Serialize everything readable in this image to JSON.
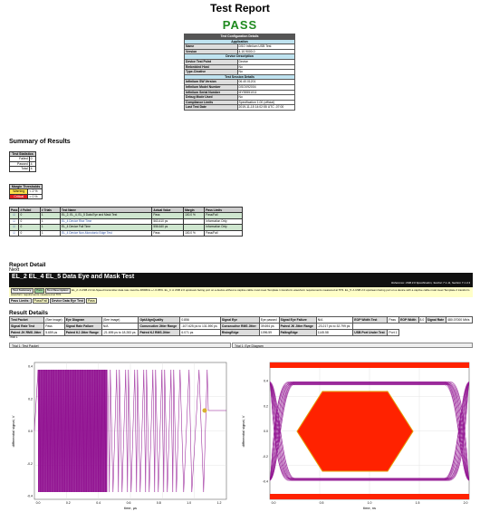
{
  "report": {
    "title": "Test Report",
    "status": "PASS"
  },
  "config": {
    "header": "Test Configuration Details",
    "sections": [
      {
        "title": "Application",
        "rows": [
          [
            "Name",
            "DSO Infiniium USB Test"
          ],
          [
            "Version",
            "4.10.9000.0"
          ]
        ]
      },
      {
        "title": "Device Description",
        "rows": [
          [
            "Device Test Point",
            "Device"
          ],
          [
            "Embedded Host",
            "No"
          ],
          [
            "Type-C/native",
            "No"
          ]
        ]
      },
      {
        "title": "Test Session Details",
        "rows": [
          [
            "Infiniium SW Version",
            "06.40.01201"
          ],
          [
            "Infiniium Model Number",
            "DSOX92004"
          ],
          [
            "Infiniium Serial Number",
            "MY55551011"
          ],
          [
            "Debug Mode Used",
            "No"
          ],
          [
            "Compliance Limits",
            "Specification 1.00 (official)"
          ],
          [
            "Last Test Date",
            "2019-11-15 14:02:55 UTC -07:00"
          ]
        ]
      }
    ]
  },
  "summary": {
    "heading": "Summary of Results",
    "stats_header": "Test Statistics",
    "stats": [
      [
        "Failed",
        "0"
      ],
      [
        "Passed",
        "4"
      ],
      [
        "Total",
        "4"
      ]
    ],
    "margin_header": "Margin Thresholds",
    "margins": [
      [
        "Warning",
        "< 2 %"
      ],
      [
        "Critical",
        "< 0 %"
      ]
    ],
    "result_columns": [
      "Pass",
      "# Failed",
      "# Trials",
      "Test Name",
      "Actual Value",
      "Margin",
      "Pass Limits"
    ],
    "results": [
      [
        "",
        "0",
        "1",
        "EL_2, EL_4, EL_5 Data Eye and Mask Test",
        "Pass",
        "100.0 %",
        "Pass/Fail"
      ],
      [
        "",
        "0",
        "1",
        "EL_4 Device Rise Time",
        "563.410 ps",
        "",
        "Information Only"
      ],
      [
        "",
        "0",
        "1",
        "EL_4 Device Fall Time",
        "556.640 ps",
        "",
        "Information Only"
      ],
      [
        "",
        "0",
        "1",
        "EL_4 Device Non-Monotonic Edge Test",
        "Pass",
        "100.0 %",
        "Pass/Fail"
      ]
    ]
  },
  "detail": {
    "heading": "Report Detail",
    "next": "Next",
    "test_title": "EL_2 EL_4 EL_5 Data Eye and Mask Test",
    "reference": "Reference: USB 3.0 Specification, Section 7.1.11, Section 7.1.3.3",
    "summary_label": "Test Summary:",
    "summary_value": "Pass",
    "description_label": "Test Description:",
    "description": "EL_2: A USB 2.0 Hi-Speed transmitter data rate must be 480Mb/s +/- 0.05%. EL_4: A USB 2.0 upstream facing port on a device without a captive cable must meet Template 1 transform waveform requirements measured at TP3. EL_5: A USB 2.0 upstream facing port on a device with a captive cable must meet Template 2 transform waveform requirements measured at TP2.",
    "limits_label": "Pass Limits:",
    "limits_value": "Pass/Fail",
    "eye_type_label": "Device Data Eye Test",
    "eye_type_value": "Pass",
    "result_details": "Result Details",
    "measurements": [
      [
        "Test Packet",
        "(See image)",
        "Eye Diagram",
        "(See image)",
        "OptAlignQuality",
        "0.856",
        "Signal Eye",
        "Eye passed",
        "Signal Eye Failure",
        "N/A",
        "EOP Width Test",
        "Pass",
        "EOP Width",
        "8.0",
        "Signal Rate",
        "480.07000 Mb/s"
      ],
      [
        "Signal Rate Test",
        "Pass",
        "Signal Rate Failure",
        "N/A",
        "Consecutive Jitter Range",
        "-107.625 ps to 131.590 ps",
        "Consecutive RMS Jitter",
        "39.694 ps",
        "Paired JK Jitter Range",
        "-23.217 ps to 32.799 ps"
      ],
      [
        "Paired JK RMS Jitter",
        "5.659 ps",
        "Paired KJ Jitter Range",
        "-21.695 ps to 18.283 ps",
        "Paired KJ RMS Jitter",
        "6.071 ps",
        "RisingEdge",
        "1096.59",
        "FallingEdge",
        "1145.58",
        "USB Port Under Test",
        "Port 1"
      ]
    ],
    "trial": "Trial 1",
    "plot1_label": "Trial 1: Test Packet",
    "plot2_label": "Trial 1: Eye Diagram"
  },
  "plot1": {
    "ylabel": "differential signal, V",
    "xlabel": "time, µs",
    "yticks": [
      "0.4",
      "0.2",
      "0.0",
      "-0.2",
      "-0.4"
    ],
    "xticks": [
      "0.0",
      "0.2",
      "0.4",
      "0.6",
      "0.8",
      "1.0",
      "1.2"
    ],
    "colors": {
      "trace": "#8e0c8e",
      "bg": "#ffffff"
    }
  },
  "plot2": {
    "ylabel": "differential signal, V",
    "xlabel": "time, ns",
    "yticks": [
      "0.4",
      "0.2",
      "0.0",
      "-0.2",
      "-0.4"
    ],
    "xticks": [
      "0.0",
      "0.5",
      "1.0",
      "1.5",
      "2.0"
    ],
    "colors": {
      "trace": "#8e0c8e",
      "mask": "#ff2200",
      "limits": "#ff2200"
    }
  }
}
